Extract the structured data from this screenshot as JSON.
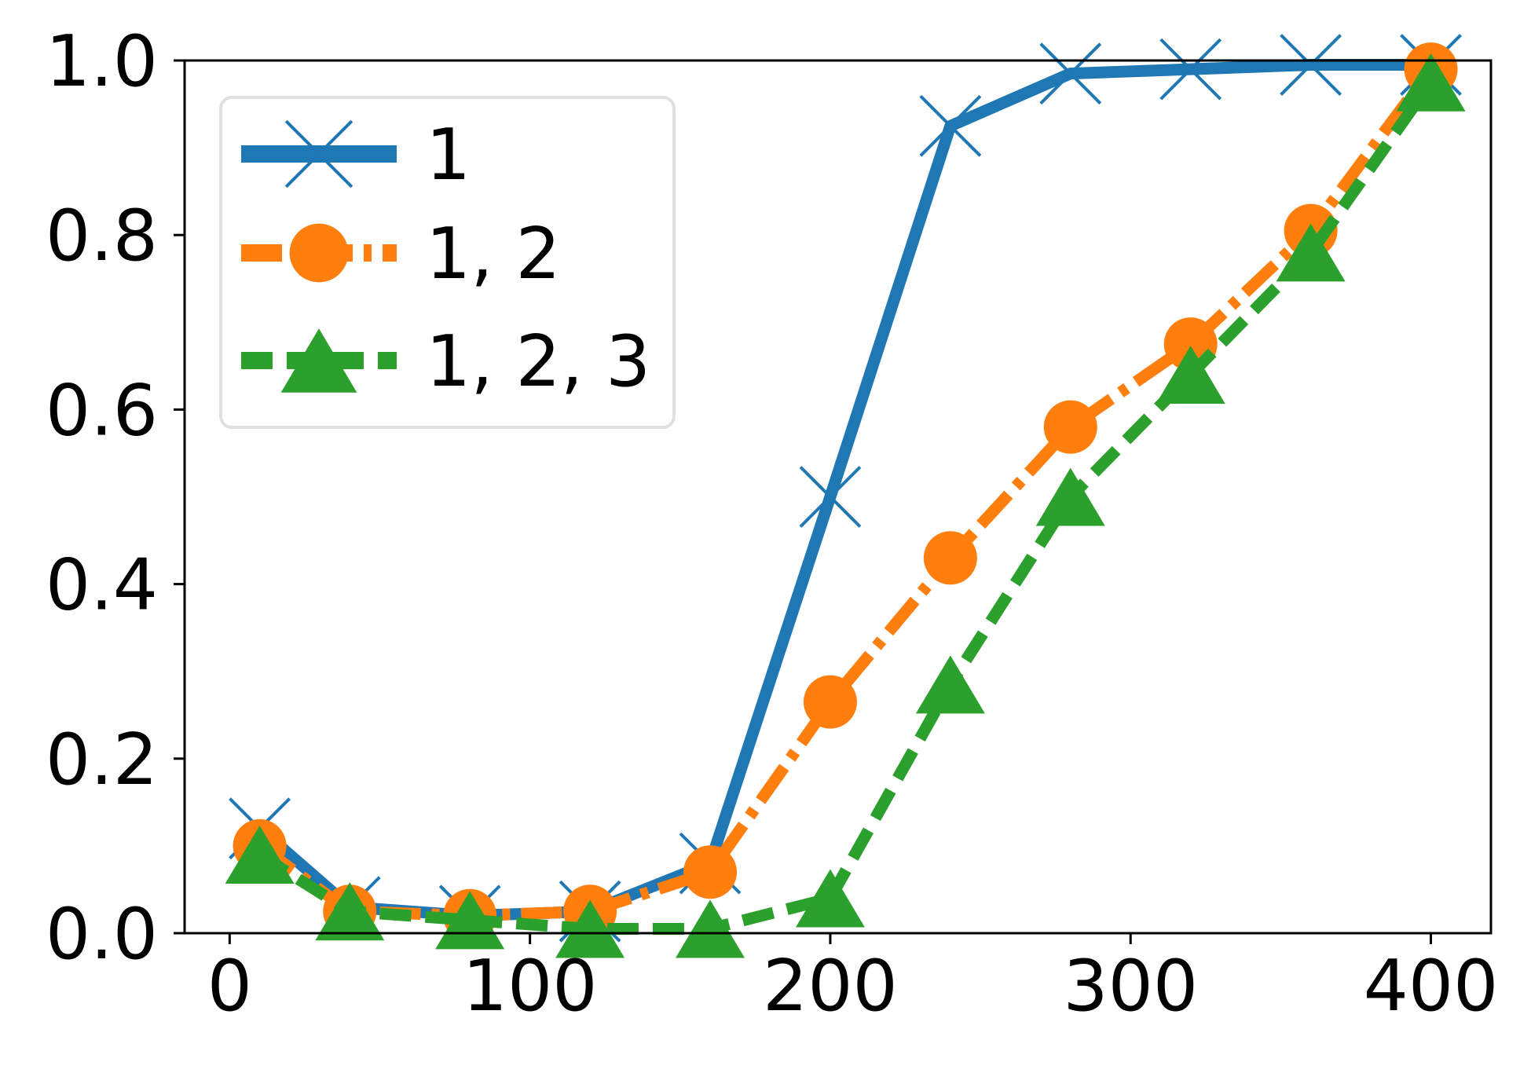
{
  "chart_data": {
    "type": "line",
    "title": "",
    "xlabel": "",
    "ylabel": "",
    "xlim": [
      -15,
      420
    ],
    "ylim": [
      0,
      1.0
    ],
    "xticks": [
      0,
      100,
      200,
      300,
      400
    ],
    "yticks": [
      0.0,
      0.2,
      0.4,
      0.6,
      0.8,
      1.0
    ],
    "xtick_labels": [
      "0",
      "100",
      "200",
      "300",
      "400"
    ],
    "ytick_labels": [
      "0.0",
      "0.2",
      "0.4",
      "0.6",
      "0.8",
      "1.0"
    ],
    "grid": false,
    "legend_position": "top-left",
    "series": [
      {
        "name": "1",
        "color": "#1f77b4",
        "marker": "x",
        "line_style": "solid",
        "x": [
          10,
          40,
          80,
          120,
          160,
          200,
          240,
          280,
          320,
          360,
          400
        ],
        "y": [
          0.12,
          0.03,
          0.02,
          0.025,
          0.08,
          0.5,
          0.925,
          0.985,
          0.99,
          0.995,
          0.995
        ]
      },
      {
        "name": "1, 2",
        "color": "#ff7f0e",
        "marker": "o",
        "line_style": "dash-dot",
        "x": [
          10,
          40,
          80,
          120,
          160,
          200,
          240,
          280,
          320,
          360,
          400
        ],
        "y": [
          0.1,
          0.025,
          0.02,
          0.025,
          0.07,
          0.265,
          0.43,
          0.58,
          0.675,
          0.805,
          0.99
        ]
      },
      {
        "name": "1, 2, 3",
        "color": "#2ca02c",
        "marker": "^",
        "line_style": "dashed",
        "x": [
          10,
          40,
          80,
          120,
          160,
          200,
          240,
          280,
          320,
          360,
          400
        ],
        "y": [
          0.09,
          0.025,
          0.015,
          0.005,
          0.005,
          0.04,
          0.285,
          0.5,
          0.64,
          0.78,
          0.975
        ]
      }
    ]
  }
}
